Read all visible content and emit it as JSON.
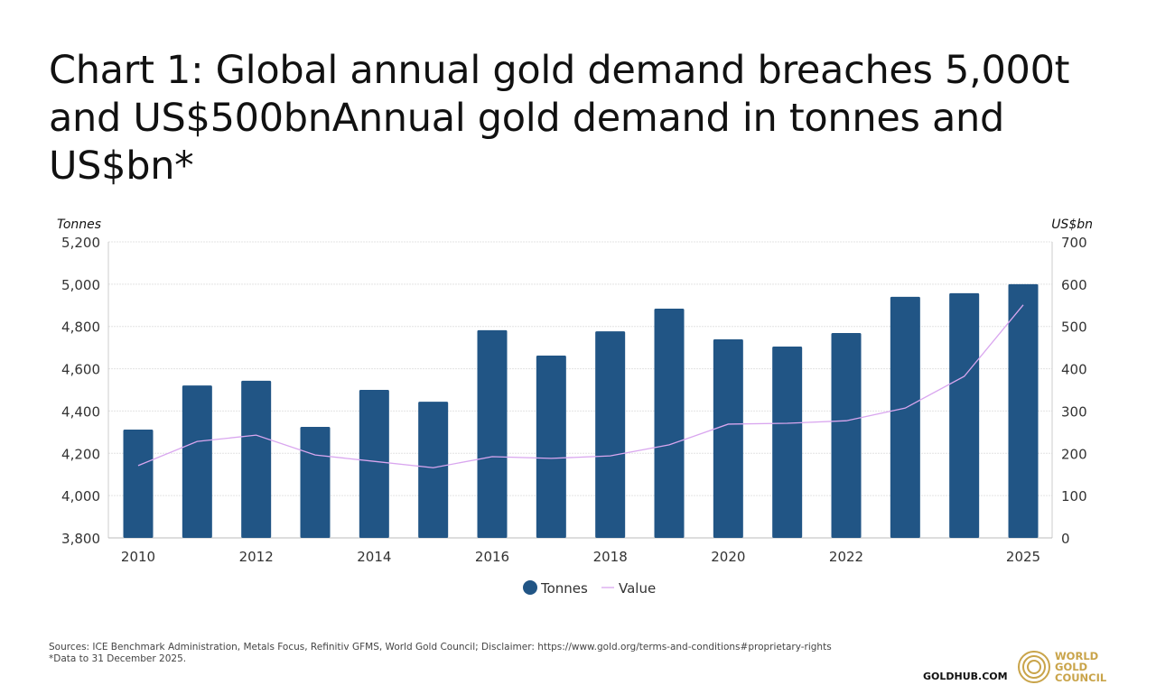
{
  "title": "Chart 1: Global annual gold demand breaches 5,000t and US$500bnAnnual gold demand in tonnes and US$bn*",
  "chart_data": {
    "type": "bar+line",
    "categories": [
      2010,
      2011,
      2012,
      2013,
      2014,
      2015,
      2016,
      2017,
      2018,
      2019,
      2020,
      2021,
      2022,
      2023,
      2024,
      2025
    ],
    "x_tick_labels": [
      "2010",
      "2012",
      "2014",
      "2016",
      "2018",
      "2020",
      "2022",
      "2025"
    ],
    "series": [
      {
        "name": "Tonnes",
        "type": "bar",
        "axis": "left",
        "color": "#215585",
        "values": [
          4312,
          4521,
          4543,
          4325,
          4500,
          4444,
          4782,
          4662,
          4777,
          4884,
          4739,
          4705,
          4769,
          4940,
          4957,
          5000
        ]
      },
      {
        "name": "Value",
        "type": "line",
        "axis": "right",
        "color": "#d9a6ef",
        "values": [
          171,
          228,
          243,
          196,
          181,
          166,
          192,
          188,
          194,
          220,
          269,
          271,
          277,
          307,
          382,
          551
        ]
      }
    ],
    "ylabel_left": "Tonnes",
    "ylabel_right": "US$bn",
    "ylim_left": [
      3800,
      5200
    ],
    "ylim_right": [
      0,
      700
    ],
    "yticks_left": [
      "3,800",
      "4,000",
      "4,200",
      "4,400",
      "4,600",
      "4,800",
      "5,000",
      "5,200"
    ],
    "yticks_right": [
      "0",
      "100",
      "200",
      "300",
      "400",
      "500",
      "600",
      "700"
    ],
    "grid": true,
    "legend": "bottom-center"
  },
  "footer": {
    "sources": "Sources: ICE Benchmark Administration, Metals Focus, Refinitiv GFMS, World Gold Council; Disclaimer: https://www.gold.org/terms-and-conditions#proprietary-rights",
    "note": "*Data to 31 December 2025.",
    "site": "GOLDHUB.COM",
    "logo_text": [
      "WORLD",
      "GOLD",
      "COUNCIL"
    ]
  },
  "colors": {
    "logo_gold": "#c9a44a"
  }
}
